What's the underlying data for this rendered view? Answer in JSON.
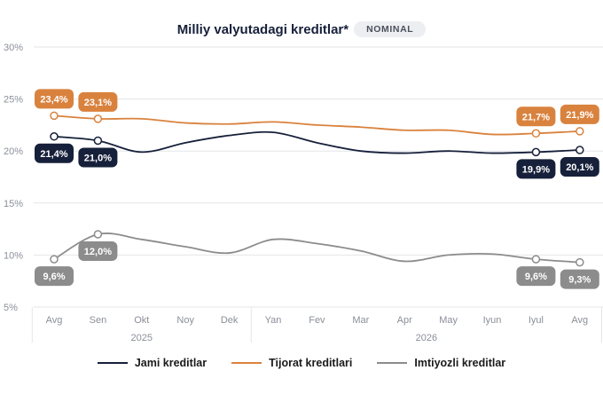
{
  "header": {
    "title": "Milliy valyutadagi kreditlar*",
    "badge": "NOMINAL"
  },
  "colors": {
    "jami": "#16203a",
    "tijorat": "#d9823e",
    "imtiyozli": "#8c8c8c",
    "grid": "#e4e6ea",
    "axis_text": "#8a8f99"
  },
  "chart_data": {
    "type": "line",
    "title": "Milliy valyutadagi kreditlar*",
    "categories": [
      "Avg",
      "Sen",
      "Okt",
      "Noy",
      "Dek",
      "Yan",
      "Fev",
      "Mar",
      "Apr",
      "May",
      "Iyun",
      "Iyul",
      "Avg"
    ],
    "year_groups": [
      {
        "label": "2025",
        "from": 0,
        "to": 4
      },
      {
        "label": "2026",
        "from": 5,
        "to": 12
      }
    ],
    "y_ticks": [
      "5%",
      "10%",
      "15%",
      "20%",
      "25%",
      "30%"
    ],
    "ylim": [
      5,
      30
    ],
    "ytick_values": [
      5,
      10,
      15,
      20,
      25,
      30
    ],
    "grid": true,
    "legend_position": "bottom",
    "series": [
      {
        "name": "Jami kreditlar",
        "color": "#16203a",
        "values": [
          21.4,
          21.0,
          19.9,
          20.8,
          21.5,
          21.8,
          20.8,
          20.0,
          19.8,
          20.0,
          19.8,
          19.9,
          20.1
        ],
        "labels": [
          {
            "i": 0,
            "text": "21,4%"
          },
          {
            "i": 1,
            "text": "21,0%"
          },
          {
            "i": 11,
            "text": "19,9%"
          },
          {
            "i": 12,
            "text": "20,1%"
          }
        ]
      },
      {
        "name": "Tijorat kreditlari",
        "color": "#d9823e",
        "values": [
          23.4,
          23.1,
          23.1,
          22.7,
          22.6,
          22.8,
          22.5,
          22.3,
          22.0,
          22.0,
          21.6,
          21.7,
          21.9
        ],
        "labels": [
          {
            "i": 0,
            "text": "23,4%"
          },
          {
            "i": 1,
            "text": "23,1%"
          },
          {
            "i": 11,
            "text": "21,7%"
          },
          {
            "i": 12,
            "text": "21,9%"
          }
        ]
      },
      {
        "name": "Imtiyozli kreditlar",
        "color": "#8c8c8c",
        "values": [
          9.6,
          12.0,
          11.5,
          10.8,
          10.2,
          11.5,
          11.1,
          10.4,
          9.4,
          10.0,
          10.1,
          9.6,
          9.3
        ],
        "labels": [
          {
            "i": 0,
            "text": "9,6%"
          },
          {
            "i": 1,
            "text": "12,0%"
          },
          {
            "i": 11,
            "text": "9,6%"
          },
          {
            "i": 12,
            "text": "9,3%"
          }
        ]
      }
    ]
  }
}
